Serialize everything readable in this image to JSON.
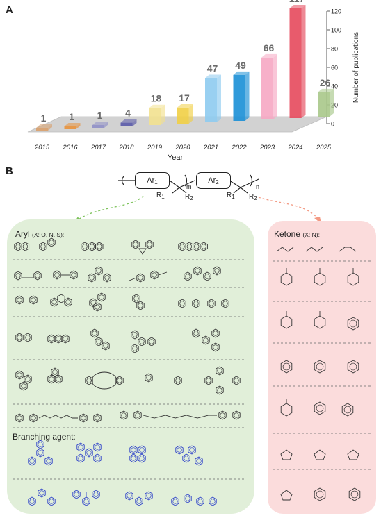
{
  "panel_a": {
    "letter": "A"
  },
  "panel_b": {
    "letter": "B"
  },
  "chart_data": {
    "type": "bar",
    "categories": [
      "2015",
      "2016",
      "2017",
      "2018",
      "2019",
      "2020",
      "2021",
      "2022",
      "2023",
      "2024",
      "2025"
    ],
    "values": [
      1,
      1,
      1,
      4,
      18,
      17,
      47,
      49,
      66,
      117,
      26
    ],
    "value_labels": [
      "1",
      "1",
      "1",
      "4",
      "18",
      "17",
      "47",
      "49",
      "66",
      "117",
      "26"
    ],
    "xlabel": "Year",
    "ylabel": "Number of publications",
    "ylim": [
      0,
      120
    ],
    "yticks": [
      "0",
      "20",
      "40",
      "60",
      "80",
      "100",
      "120"
    ],
    "colors": [
      "#d9a06b",
      "#e8913a",
      "#8f8fc6",
      "#5a5aa8",
      "#f2e18f",
      "#f1cf45",
      "#8ecbef",
      "#1a8fd6",
      "#f6a7c3",
      "#e5495c",
      "#a8c88a"
    ]
  },
  "polymer": {
    "ar1": "Ar",
    "ar1_sub": "1",
    "ar2": "Ar",
    "ar2_sub": "2",
    "m": "m",
    "n": "n",
    "r1": "R",
    "r1_sub": "1",
    "r2": "R",
    "r2_sub": "2"
  },
  "aryl": {
    "title": "Aryl",
    "title_note": "(X: O, N, S):",
    "branching_title": "Branching agent:"
  },
  "ketone": {
    "title": "Ketone",
    "title_note": "(X: N):"
  },
  "colors": {
    "aryl_bg": "#e1efd9",
    "ketone_bg": "#fbdcdc",
    "branching": "#2b3fc9"
  }
}
